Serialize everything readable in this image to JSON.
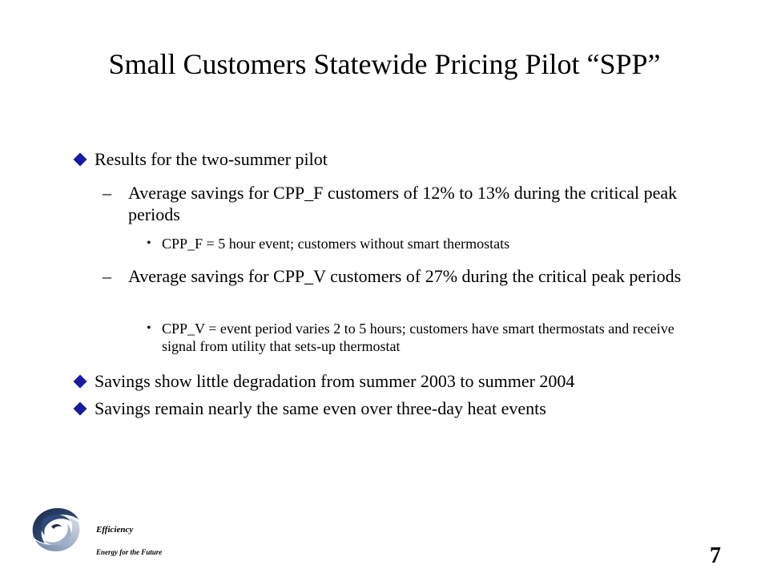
{
  "slide": {
    "title": "Small Customers Statewide Pricing Pilot “SPP”",
    "bullets": [
      "Results for the two-summer pilot",
      "Savings show little degradation from summer 2003 to summer 2004",
      "Savings remain nearly the same even over three-day heat events"
    ],
    "sub_items": [
      {
        "dash": "–",
        "text": "Average savings for CPP_F customers of 12% to 13% during the critical peak periods"
      },
      {
        "dash": "–",
        "text": "Average savings for CPP_V customers of 27% during the critical peak periods"
      }
    ],
    "sub_sub_items": [
      {
        "dot": "•",
        "text": "CPP_F = 5 hour event; customers without smart thermostats"
      },
      {
        "dot": "•",
        "text": "CPP_V = event period varies 2 to 5 hours; customers have smart thermostats and receive signal from utility that sets-up thermostat"
      }
    ],
    "bullet_color": "#1a1aa0"
  },
  "footer": {
    "brand_name": "Efficiency",
    "tagline": "Energy for the Future",
    "page_number": "7",
    "logo_icon": "swirl-logo-icon"
  }
}
